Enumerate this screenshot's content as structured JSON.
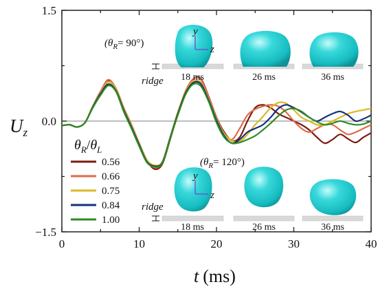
{
  "chart_data": {
    "type": "line",
    "title": "",
    "xlabel": "t",
    "xlabel_unit": "(ms)",
    "ylabel": "U",
    "ylabel_sub": "z",
    "xlim": [
      0,
      40
    ],
    "ylim": [
      -1.5,
      1.5
    ],
    "xticks": [
      "0",
      "10",
      "20",
      "30",
      "40"
    ],
    "yticks": [
      "1.5",
      "0.0",
      "−1.5"
    ],
    "ytick_values": [
      1.5,
      0.0,
      -1.5
    ],
    "zero_line": true,
    "legend": {
      "title": "θR/θL",
      "title_theta": "θ",
      "title_sub1": "R",
      "title_sep": "/",
      "title_sub2": "L",
      "placement": "bottom-left"
    },
    "x": [
      0,
      1,
      2,
      3,
      4,
      5,
      6,
      7,
      8,
      9,
      10,
      11,
      12,
      13,
      14,
      15,
      16,
      17,
      18,
      19,
      20,
      21,
      22,
      23,
      24,
      25,
      26,
      27,
      28,
      29,
      30,
      31,
      32,
      33,
      34,
      35,
      36,
      37,
      38,
      39,
      40
    ],
    "series": [
      {
        "name": "0.56",
        "color": "#7b1a10",
        "values": [
          -0.06,
          -0.05,
          -0.08,
          -0.02,
          0.2,
          0.4,
          0.55,
          0.44,
          0.18,
          -0.05,
          -0.3,
          -0.53,
          -0.65,
          -0.58,
          -0.25,
          0.1,
          0.4,
          0.57,
          0.57,
          0.33,
          0.05,
          -0.15,
          -0.27,
          -0.22,
          0.0,
          0.18,
          0.22,
          0.18,
          0.1,
          0.05,
          0.0,
          -0.05,
          -0.12,
          -0.22,
          -0.3,
          -0.25,
          -0.18,
          -0.24,
          -0.29,
          -0.22,
          -0.16
        ]
      },
      {
        "name": "0.66",
        "color": "#e0694a",
        "values": [
          -0.06,
          -0.05,
          -0.08,
          -0.02,
          0.2,
          0.4,
          0.56,
          0.44,
          0.18,
          -0.05,
          -0.3,
          -0.53,
          -0.63,
          -0.56,
          -0.23,
          0.11,
          0.41,
          0.57,
          0.56,
          0.32,
          0.04,
          -0.17,
          -0.25,
          -0.1,
          0.08,
          0.16,
          0.2,
          0.22,
          0.2,
          0.12,
          0.0,
          -0.1,
          -0.15,
          -0.1,
          -0.05,
          -0.05,
          -0.12,
          -0.18,
          -0.15,
          -0.1,
          -0.05
        ]
      },
      {
        "name": "0.75",
        "color": "#d9b825",
        "values": [
          -0.06,
          -0.05,
          -0.08,
          -0.02,
          0.2,
          0.38,
          0.53,
          0.43,
          0.17,
          -0.06,
          -0.3,
          -0.53,
          -0.6,
          -0.55,
          -0.22,
          0.12,
          0.4,
          0.54,
          0.52,
          0.3,
          0.03,
          -0.17,
          -0.27,
          -0.28,
          -0.18,
          -0.05,
          0.06,
          0.18,
          0.25,
          0.24,
          0.15,
          0.05,
          0.0,
          -0.05,
          -0.05,
          0.0,
          0.05,
          0.1,
          0.13,
          0.15,
          0.17
        ]
      },
      {
        "name": "0.84",
        "color": "#16307d",
        "values": [
          -0.06,
          -0.05,
          -0.08,
          -0.02,
          0.19,
          0.37,
          0.5,
          0.41,
          0.15,
          -0.08,
          -0.32,
          -0.55,
          -0.61,
          -0.56,
          -0.23,
          0.1,
          0.38,
          0.52,
          0.5,
          0.28,
          0.01,
          -0.2,
          -0.3,
          -0.25,
          -0.15,
          -0.1,
          -0.05,
          0.05,
          0.17,
          0.22,
          0.18,
          0.12,
          0.05,
          0.0,
          0.05,
          0.1,
          0.13,
          0.08,
          0.0,
          0.03,
          0.08
        ]
      },
      {
        "name": "1.00",
        "color": "#2f8a22",
        "values": [
          -0.06,
          -0.05,
          -0.08,
          -0.02,
          0.18,
          0.35,
          0.48,
          0.4,
          0.13,
          -0.1,
          -0.34,
          -0.56,
          -0.62,
          -0.57,
          -0.24,
          0.08,
          0.36,
          0.5,
          0.47,
          0.26,
          -0.02,
          -0.22,
          -0.3,
          -0.29,
          -0.25,
          -0.2,
          -0.12,
          -0.03,
          0.07,
          0.15,
          0.17,
          0.13,
          0.05,
          -0.01,
          -0.05,
          -0.03,
          0.0,
          -0.03,
          -0.05,
          -0.04,
          0.0
        ]
      }
    ],
    "annotations": {
      "top_angle": {
        "theta": "(θ",
        "sub": "R",
        "rest": "= 90°)"
      },
      "bottom_angle": {
        "theta": "(θ",
        "sub": "R",
        "rest": "= 120°)"
      },
      "ridge_label": "ridge",
      "axis_y": "y",
      "axis_z": "z",
      "times": [
        "18 ms",
        "26 ms",
        "36 ms"
      ]
    }
  },
  "colors": {
    "droplet": "#1ec9cc",
    "droplet_light": "#b8f6f6",
    "droplet_dark": "#0d9ea3",
    "substrate": "#d9d9d9",
    "zero_line": "#aaaaaa",
    "coord_axis": "#6a5acd"
  }
}
